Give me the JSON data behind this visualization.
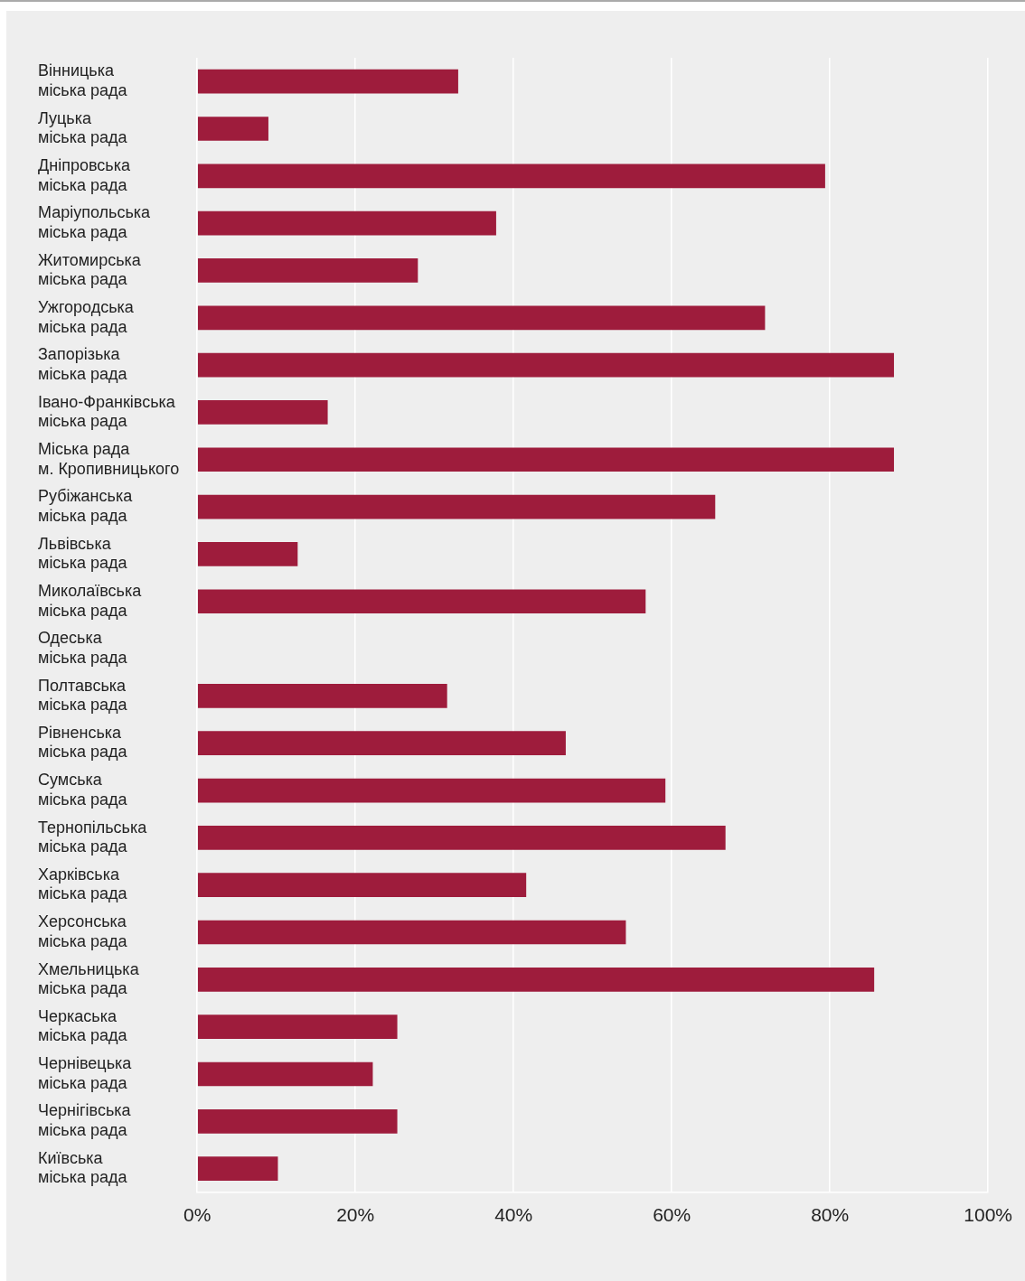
{
  "chart_data": {
    "type": "bar",
    "orientation": "horizontal",
    "categories": [
      "Вінницька\nміська рада",
      "Луцька\nміська рада",
      "Дніпровська\nміська рада",
      "Маріупольська\nміська рада",
      "Житомирська\nміська рада",
      "Ужгородська\nміська рада",
      "Запорізька\nміська рада",
      "Івано-Франківська\nміська рада",
      "Міська рада\nм. Кропивницького",
      "Рубіжанська\nміська рада",
      "Львівська\nміська рада",
      "Миколаївська\nміська рада",
      "Одеська\nміська рада",
      "Полтавська\nміська рада",
      "Рівненська\nміська рада",
      "Сумська\nміська рада",
      "Тернопільська\nміська рада",
      "Харківська\nміська рада",
      "Херсонська\nміська рада",
      "Хмельницька\nміська рада",
      "Черкаська\nміська рада",
      "Чернівецька\nміська рада",
      "Чернігівська\nміська рада",
      "Київська\nміська рада"
    ],
    "values": [
      33,
      9,
      79.4,
      37.8,
      27.9,
      71.8,
      88.1,
      16.5,
      88.1,
      65.5,
      12.7,
      56.7,
      null,
      31.6,
      46.6,
      59.2,
      66.8,
      41.6,
      54.2,
      85.6,
      25.3,
      22.2,
      25.3,
      10.2
    ],
    "color": "#9e1c3c",
    "xlim": [
      0,
      100
    ],
    "xticks": [
      {
        "value": 0,
        "label": "0%"
      },
      {
        "value": 20,
        "label": "20%"
      },
      {
        "value": 40,
        "label": "40%"
      },
      {
        "value": 60,
        "label": "60%"
      },
      {
        "value": 80,
        "label": "80%"
      },
      {
        "value": 100,
        "label": "100%"
      }
    ],
    "grid": "x",
    "legend": false
  }
}
